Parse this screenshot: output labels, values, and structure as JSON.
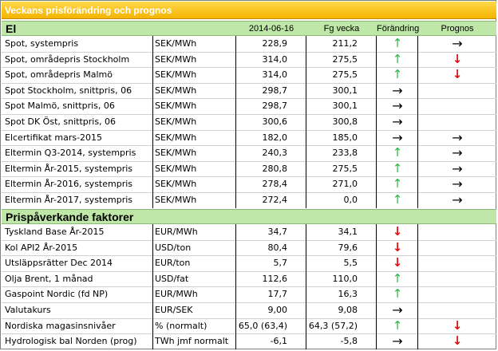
{
  "title": "Veckans prisförändring och prognos",
  "section_el": {
    "name": "El",
    "headers": {
      "date": "2014-06-16",
      "prev": "Fg vecka",
      "change": "Förändring",
      "forecast": "Prognos"
    }
  },
  "el_rows": [
    {
      "name": "Spot, systempris",
      "unit": "SEK/MWh",
      "v1": "228,9",
      "v2": "211,2",
      "change": "up",
      "forecast": "flat"
    },
    {
      "name": "Spot, områdepris Stockholm",
      "unit": "SEK/MWh",
      "v1": "314,0",
      "v2": "275,5",
      "change": "up",
      "forecast": "down"
    },
    {
      "name": "Spot, områdepris Malmö",
      "unit": "SEK/MWh",
      "v1": "314,0",
      "v2": "275,5",
      "change": "up",
      "forecast": "down"
    },
    {
      "name": "Spot Stockholm, snittpris,  06",
      "unit": "SEK/MWh",
      "v1": "298,7",
      "v2": "300,1",
      "change": "flat",
      "forecast": ""
    },
    {
      "name": "Spot Malmö, snittpris,  06",
      "unit": "SEK/MWh",
      "v1": "298,7",
      "v2": "300,1",
      "change": "flat",
      "forecast": ""
    },
    {
      "name": "Spot DK Öst, snittpris,  06",
      "unit": "SEK/MWh",
      "v1": "300,6",
      "v2": "300,8",
      "change": "flat",
      "forecast": ""
    },
    {
      "name": "Elcertifikat mars-2015",
      "unit": "SEK/MWh",
      "v1": "182,0",
      "v2": "185,0",
      "change": "flat",
      "forecast": "flat"
    },
    {
      "name": "Eltermin Q3-2014, systempris",
      "unit": "SEK/MWh",
      "v1": "240,3",
      "v2": "233,8",
      "change": "up",
      "forecast": "flat"
    },
    {
      "name": "Eltermin År-2015, systempris",
      "unit": "SEK/MWh",
      "v1": "280,8",
      "v2": "275,5",
      "change": "up",
      "forecast": "flat"
    },
    {
      "name": "Eltermin År-2016, systempris",
      "unit": "SEK/MWh",
      "v1": "278,4",
      "v2": "271,0",
      "change": "up",
      "forecast": "flat"
    },
    {
      "name": "Eltermin År-2017, systempris",
      "unit": "SEK/MWh",
      "v1": "272,4",
      "v2": "0,0",
      "change": "up",
      "forecast": "flat"
    }
  ],
  "section_factors": {
    "name": "Prispåverkande faktorer"
  },
  "factor_rows": [
    {
      "name": "Tyskland Base År-2015",
      "unit": "EUR/MWh",
      "v1": "34,7",
      "v2": "34,1",
      "change": "down",
      "forecast": ""
    },
    {
      "name": "Kol API2 År-2015",
      "unit": "USD/ton",
      "v1": "80,4",
      "v2": "79,6",
      "change": "down",
      "forecast": ""
    },
    {
      "name": "Utsläppsrätter Dec 2014",
      "unit": "EUR/ton",
      "v1": "5,7",
      "v2": "5,5",
      "change": "down",
      "forecast": ""
    },
    {
      "name": "Olja Brent, 1 månad",
      "unit": "USD/fat",
      "v1": "112,6",
      "v2": "110,0",
      "change": "up",
      "forecast": ""
    },
    {
      "name": "Gaspoint Nordic (fd NP)",
      "unit": "EUR/MWh",
      "v1": "17,7",
      "v2": "16,3",
      "change": "up",
      "forecast": ""
    },
    {
      "name": "Valutakurs",
      "unit": "EUR/SEK",
      "v1": "9,00",
      "v2": "9,08",
      "change": "flat",
      "forecast": ""
    },
    {
      "name": "Nordiska magasinsnivåer",
      "unit": "%  (normalt)",
      "v1": "65,0 (63,4)",
      "v2": "64,3 (57,2)",
      "change": "up",
      "forecast": "down"
    },
    {
      "name": "Hydrologisk bal Norden (prog)",
      "unit": "TWh jmf normalt",
      "v1": "-6,1",
      "v2": "-5,8",
      "change": "flat",
      "forecast": "down"
    }
  ],
  "icons": {
    "up": "↑",
    "down": "↓",
    "flat": "→"
  },
  "colors": {
    "title_bg": "#f5b400",
    "section_bg": "#bfe8a8",
    "up": "#33b24b",
    "down": "#e01010"
  }
}
